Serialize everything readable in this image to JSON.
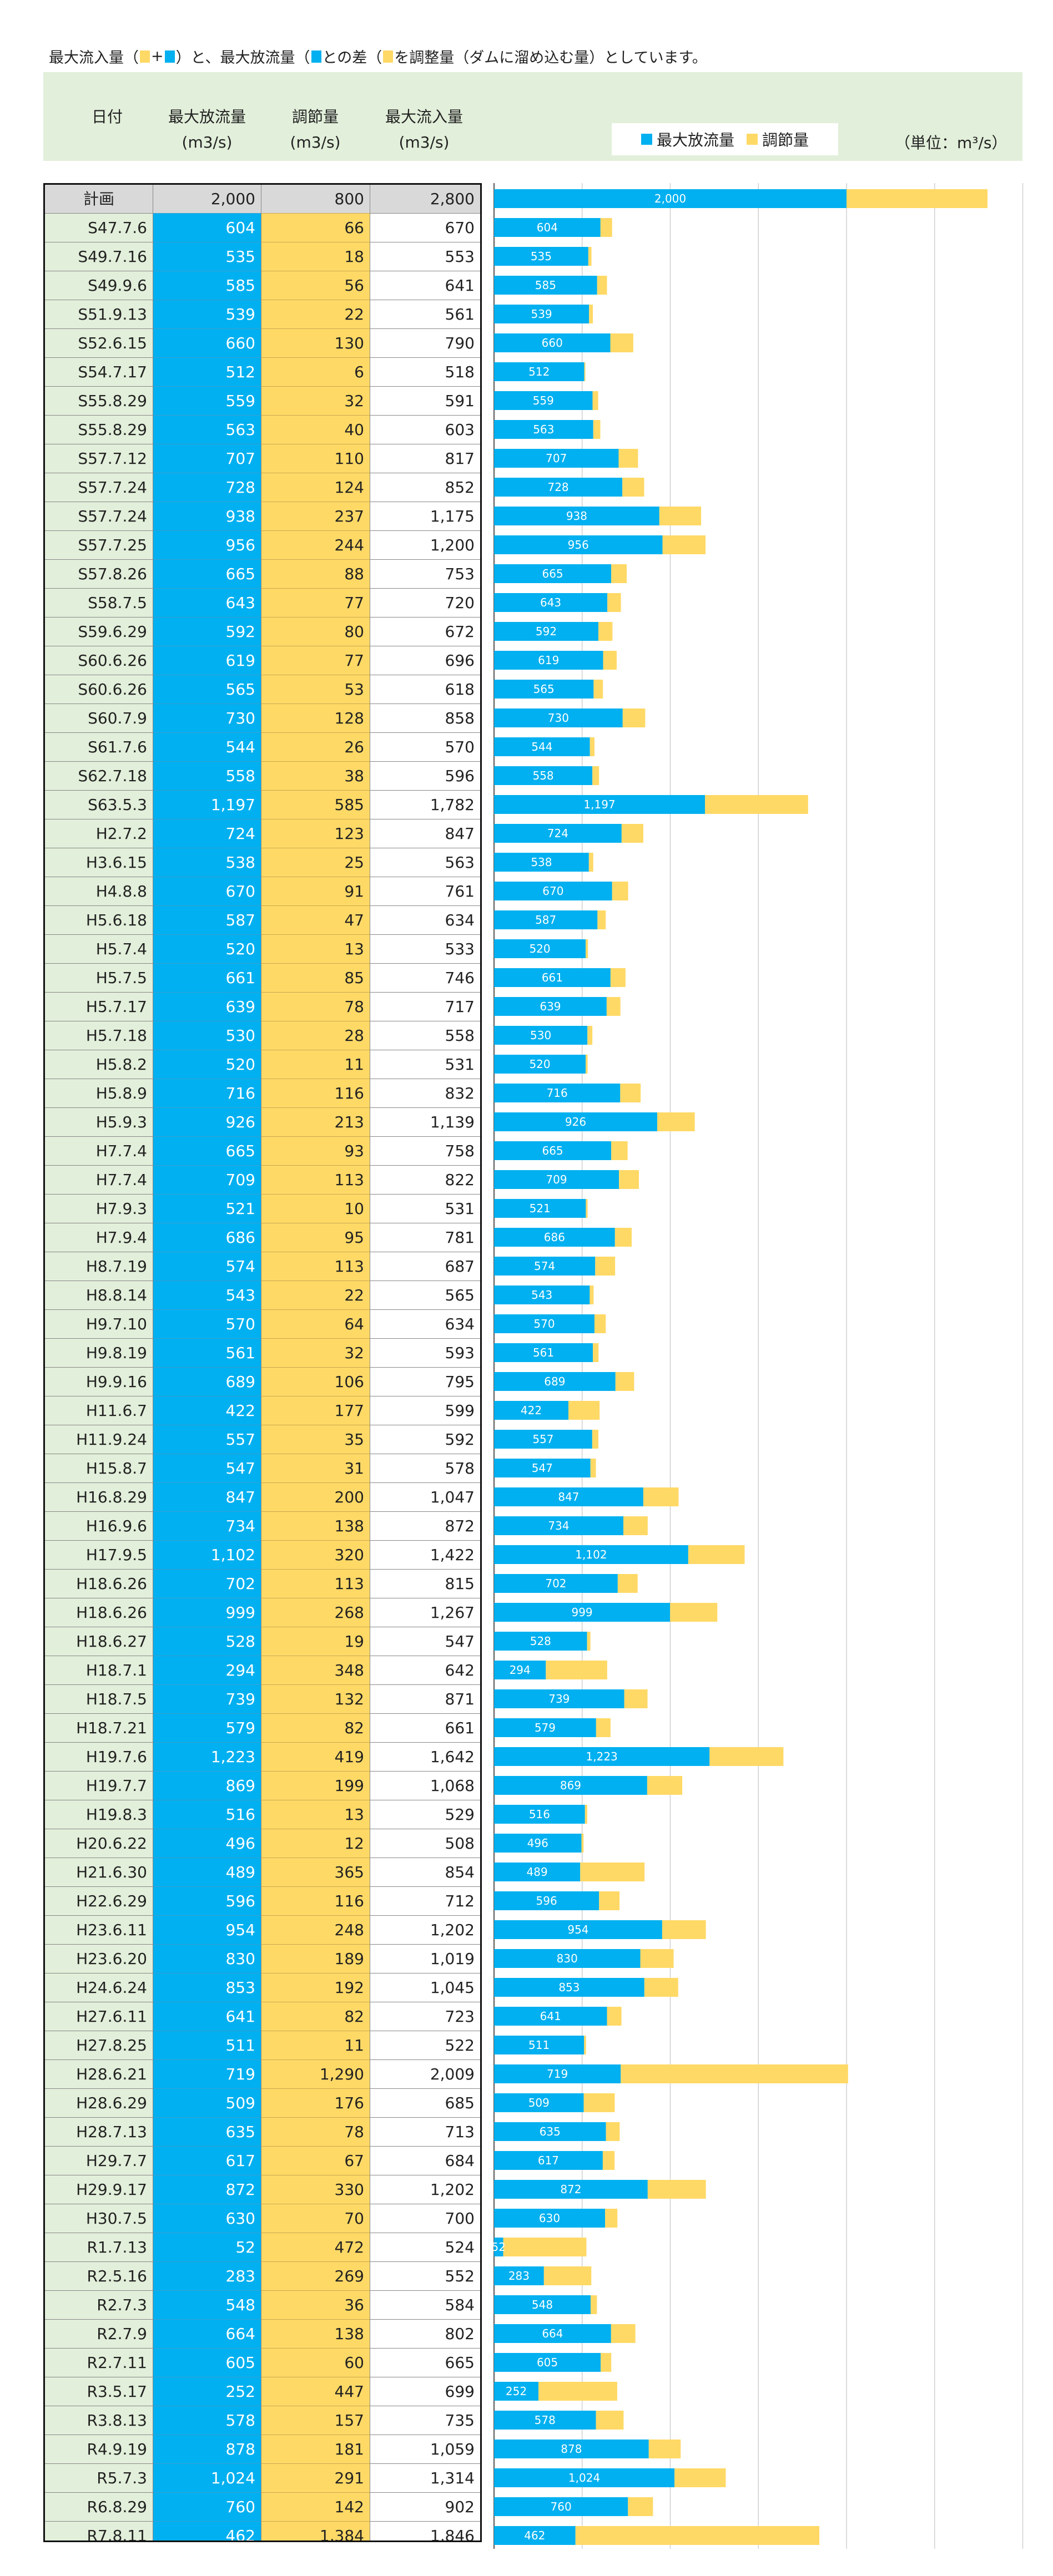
{
  "note": {
    "t1": "最大流入量（",
    "t2": "+",
    "t3": "）と、最大放流量（",
    "t4": "との差（",
    "t5": "を調整量（ダムに溜め込む量）としています。",
    "colors": {
      "release": "#00B0F0",
      "adjust": "#FFD966",
      "header_bg": "#E2EFDA"
    }
  },
  "header": {
    "date": "日付",
    "release": "最大放流量",
    "adjust": "調節量",
    "inflow": "最大流入量",
    "unit_release": "(m3/s)",
    "unit_adjust": "(m3/s)",
    "unit_inflow": "(m3/s)",
    "chart_unit": "（単位：m³/s）"
  },
  "chart_data": {
    "type": "bar",
    "stacked": true,
    "orientation": "horizontal",
    "title": "",
    "xlabel": "",
    "ylabel": "",
    "xlim": [
      0,
      3000
    ],
    "grid": true,
    "legend": "top-right",
    "unit": "m³/s",
    "categories": [
      "計画",
      "S47.7.6",
      "S49.7.16",
      "S49.9.6",
      "S51.9.13",
      "S52.6.15",
      "S54.7.17",
      "S55.8.29",
      "S55.8.29",
      "S57.7.12",
      "S57.7.24",
      "S57.7.24",
      "S57.7.25",
      "S57.8.26",
      "S58.7.5",
      "S59.6.29",
      "S60.6.26",
      "S60.6.26",
      "S60.7.9",
      "S61.7.6",
      "S62.7.18",
      "S63.5.3",
      "H2.7.2",
      "H3.6.15",
      "H4.8.8",
      "H5.6.18",
      "H5.7.4",
      "H5.7.5",
      "H5.7.17",
      "H5.7.18",
      "H5.8.2",
      "H5.8.9",
      "H5.9.3",
      "H7.7.4",
      "H7.7.4",
      "H7.9.3",
      "H7.9.4",
      "H8.7.19",
      "H8.8.14",
      "H9.7.10",
      "H9.8.19",
      "H9.9.16",
      "H11.6.7",
      "H11.9.24",
      "H15.8.7",
      "H16.8.29",
      "H16.9.6",
      "H17.9.5",
      "H18.6.26",
      "H18.6.26",
      "H18.6.27",
      "H18.7.1",
      "H18.7.5",
      "H18.7.21",
      "H19.7.6",
      "H19.7.7",
      "H19.8.3",
      "H20.6.22",
      "H21.6.30",
      "H22.6.29",
      "H23.6.11",
      "H23.6.20",
      "H24.6.24",
      "H27.6.11",
      "H27.8.25",
      "H28.6.21",
      "H28.6.29",
      "H28.7.13",
      "H29.7.7",
      "H29.9.17",
      "H30.7.5",
      "R1.7.13",
      "R2.5.16",
      "R2.7.3",
      "R2.7.9",
      "R2.7.11",
      "R3.5.17",
      "R3.8.13",
      "R4.9.19",
      "R5.7.3",
      "R6.8.29",
      "R7.8.11"
    ],
    "release_labels": [
      "2,000",
      "604",
      "535",
      "585",
      "539",
      "660",
      "512",
      "559",
      "563",
      "707",
      "728",
      "938",
      "956",
      "665",
      "643",
      "592",
      "619",
      "565",
      "730",
      "544",
      "558",
      "1,197",
      "724",
      "538",
      "670",
      "587",
      "520",
      "661",
      "639",
      "530",
      "520",
      "716",
      "926",
      "665",
      "709",
      "521",
      "686",
      "574",
      "543",
      "570",
      "561",
      "689",
      "422",
      "557",
      "547",
      "847",
      "734",
      "1,102",
      "702",
      "999",
      "528",
      "294",
      "739",
      "579",
      "1,223",
      "869",
      "516",
      "496",
      "489",
      "596",
      "954",
      "830",
      "853",
      "641",
      "511",
      "719",
      "509",
      "635",
      "617",
      "872",
      "630",
      "52",
      "283",
      "548",
      "664",
      "605",
      "252",
      "578",
      "878",
      "1,024",
      "760",
      "462"
    ],
    "adjust_labels": [
      "800",
      "66",
      "18",
      "56",
      "22",
      "130",
      "6",
      "32",
      "40",
      "110",
      "124",
      "237",
      "244",
      "88",
      "77",
      "80",
      "77",
      "53",
      "128",
      "26",
      "38",
      "585",
      "123",
      "25",
      "91",
      "47",
      "13",
      "85",
      "78",
      "28",
      "11",
      "116",
      "213",
      "93",
      "113",
      "10",
      "95",
      "113",
      "22",
      "64",
      "32",
      "106",
      "177",
      "35",
      "31",
      "200",
      "138",
      "320",
      "113",
      "268",
      "19",
      "348",
      "132",
      "82",
      "419",
      "199",
      "13",
      "12",
      "365",
      "116",
      "248",
      "189",
      "192",
      "82",
      "11",
      "1,290",
      "176",
      "78",
      "67",
      "330",
      "70",
      "472",
      "269",
      "36",
      "138",
      "60",
      "447",
      "157",
      "181",
      "291",
      "142",
      "1,384"
    ],
    "inflow_labels": [
      "2,800",
      "670",
      "553",
      "641",
      "561",
      "790",
      "518",
      "591",
      "603",
      "817",
      "852",
      "1,175",
      "1,200",
      "753",
      "720",
      "672",
      "696",
      "618",
      "858",
      "570",
      "596",
      "1,782",
      "847",
      "563",
      "761",
      "634",
      "533",
      "746",
      "717",
      "558",
      "531",
      "832",
      "1,139",
      "758",
      "822",
      "531",
      "781",
      "687",
      "565",
      "634",
      "593",
      "795",
      "599",
      "592",
      "578",
      "1,047",
      "872",
      "1,422",
      "815",
      "1,267",
      "547",
      "642",
      "871",
      "661",
      "1,642",
      "1,068",
      "529",
      "508",
      "854",
      "712",
      "1,202",
      "1,019",
      "1,045",
      "723",
      "522",
      "2,009",
      "685",
      "713",
      "684",
      "1,202",
      "700",
      "524",
      "552",
      "584",
      "802",
      "665",
      "699",
      "735",
      "1,059",
      "1,314",
      "902",
      "1,846"
    ],
    "series": [
      {
        "name": "最大放流量",
        "color": "#00B0F0",
        "values": [
          2000,
          604,
          535,
          585,
          539,
          660,
          512,
          559,
          563,
          707,
          728,
          938,
          956,
          665,
          643,
          592,
          619,
          565,
          730,
          544,
          558,
          1197,
          724,
          538,
          670,
          587,
          520,
          661,
          639,
          530,
          520,
          716,
          926,
          665,
          709,
          521,
          686,
          574,
          543,
          570,
          561,
          689,
          422,
          557,
          547,
          847,
          734,
          1102,
          702,
          999,
          528,
          294,
          739,
          579,
          1223,
          869,
          516,
          496,
          489,
          596,
          954,
          830,
          853,
          641,
          511,
          719,
          509,
          635,
          617,
          872,
          630,
          52,
          283,
          548,
          664,
          605,
          252,
          578,
          878,
          1024,
          760,
          462
        ]
      },
      {
        "name": "調節量",
        "color": "#FFD966",
        "values": [
          800,
          66,
          18,
          56,
          22,
          130,
          6,
          32,
          40,
          110,
          124,
          237,
          244,
          88,
          77,
          80,
          77,
          53,
          128,
          26,
          38,
          585,
          123,
          25,
          91,
          47,
          13,
          85,
          78,
          28,
          11,
          116,
          213,
          93,
          113,
          10,
          95,
          113,
          22,
          64,
          32,
          106,
          177,
          35,
          31,
          200,
          138,
          320,
          113,
          268,
          19,
          348,
          132,
          82,
          419,
          199,
          13,
          12,
          365,
          116,
          248,
          189,
          192,
          82,
          11,
          1290,
          176,
          78,
          67,
          330,
          70,
          472,
          269,
          36,
          138,
          60,
          447,
          157,
          181,
          291,
          142,
          1384
        ]
      }
    ]
  }
}
